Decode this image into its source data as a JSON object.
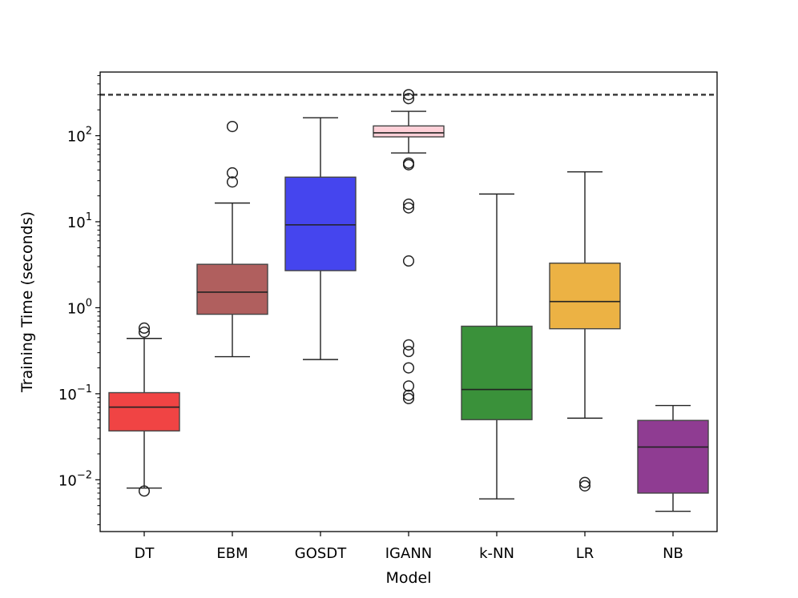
{
  "chart_data": {
    "type": "boxplot",
    "title": "",
    "xlabel": "Model",
    "ylabel": "Training Time (seconds)",
    "yscale": "log",
    "ylim": [
      0.0025,
      550
    ],
    "y_ticks": [
      {
        "value": 0.01,
        "base": "10",
        "exp": "−2"
      },
      {
        "value": 0.1,
        "base": "10",
        "exp": "−1"
      },
      {
        "value": 1,
        "base": "10",
        "exp": "0"
      },
      {
        "value": 10,
        "base": "10",
        "exp": "1"
      },
      {
        "value": 100,
        "base": "10",
        "exp": "2"
      }
    ],
    "reference_line": {
      "value": 300,
      "style": "dashed",
      "color": "#444444"
    },
    "grid": false,
    "categories": [
      "DT",
      "EBM",
      "GOSDT",
      "IGANN",
      "k-NN",
      "LR",
      "NB"
    ],
    "boxes": [
      {
        "category": "DT",
        "color": "#f04444",
        "whisker_low": 0.008,
        "q1": 0.037,
        "median": 0.07,
        "q3": 0.103,
        "whisker_high": 0.44,
        "outliers": [
          0.0074,
          0.52,
          0.58
        ]
      },
      {
        "category": "EBM",
        "color": "#b05f5e",
        "whisker_low": 0.27,
        "q1": 0.84,
        "median": 1.52,
        "q3": 3.2,
        "whisker_high": 16.5,
        "outliers": [
          29,
          37,
          128
        ]
      },
      {
        "category": "GOSDT",
        "color": "#4545ee",
        "whisker_low": 0.25,
        "q1": 2.7,
        "median": 9.2,
        "q3": 33,
        "whisker_high": 162,
        "outliers": []
      },
      {
        "category": "IGANN",
        "color": "#ffd0d8",
        "whisker_low": 63,
        "q1": 97,
        "median": 108,
        "q3": 130,
        "whisker_high": 192,
        "outliers": [
          0.088,
          0.096,
          0.123,
          0.2,
          0.31,
          0.37,
          3.5,
          14.5,
          16,
          46,
          48,
          270,
          300
        ]
      },
      {
        "category": "k-NN",
        "color": "#3a913a",
        "whisker_low": 0.006,
        "q1": 0.05,
        "median": 0.112,
        "q3": 0.61,
        "whisker_high": 21,
        "outliers": []
      },
      {
        "category": "LR",
        "color": "#ecb244",
        "whisker_low": 0.052,
        "q1": 0.57,
        "median": 1.18,
        "q3": 3.3,
        "whisker_high": 38,
        "outliers": [
          0.0085,
          0.0093
        ]
      },
      {
        "category": "NB",
        "color": "#8f3c92",
        "whisker_low": 0.0043,
        "q1": 0.007,
        "median": 0.024,
        "q3": 0.049,
        "whisker_high": 0.073,
        "outliers": []
      }
    ]
  }
}
